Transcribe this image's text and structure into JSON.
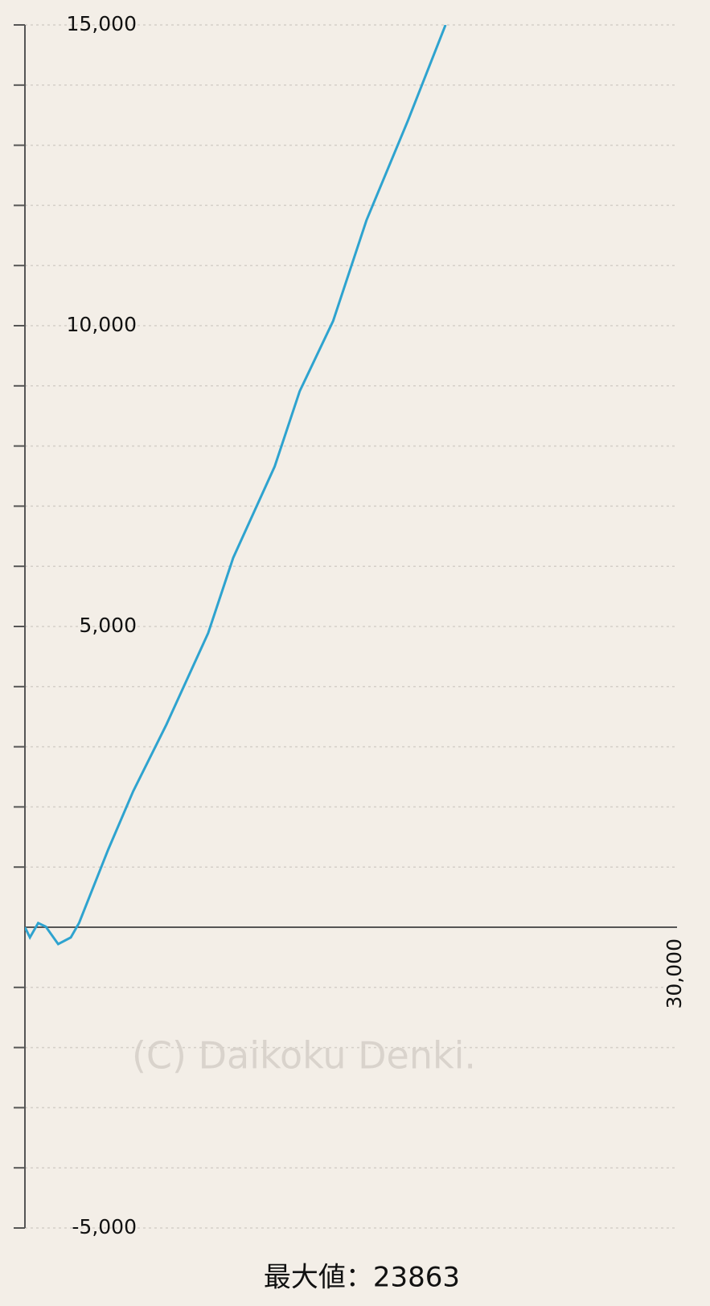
{
  "chart_data": {
    "type": "line",
    "xlim": [
      0,
      30000
    ],
    "xticks": [
      {
        "value": 30000,
        "label": "30,000"
      }
    ],
    "ylim": [
      -5000,
      15000
    ],
    "yticks": [
      {
        "value": -5000,
        "label": "-5,000"
      },
      {
        "value": 5000,
        "label": "5,000"
      },
      {
        "value": 10000,
        "label": "10,000"
      },
      {
        "value": 15000,
        "label": "15,000"
      }
    ],
    "minor_yticks": [
      -5000,
      -4000,
      -3000,
      -2000,
      -1000,
      1000,
      2000,
      3000,
      4000,
      5000,
      6000,
      7000,
      8000,
      9000,
      10000,
      11000,
      12000,
      13000,
      14000,
      15000
    ],
    "grid": true,
    "watermark": "(C) Daikoku Denki.",
    "footer": "最大値：23863",
    "series": [
      {
        "color": "#2ea3cf",
        "x": [
          0,
          230,
          610,
          960,
          1530,
          2110,
          2490,
          3830,
          4980,
          6510,
          8430,
          9580,
          11490,
          12640,
          14180,
          15710,
          17620,
          19350
        ],
        "values": [
          0,
          -170,
          70,
          10,
          -280,
          -170,
          70,
          1290,
          2260,
          3370,
          4890,
          6140,
          7660,
          8910,
          10080,
          11750,
          13410,
          15000
        ]
      }
    ]
  }
}
